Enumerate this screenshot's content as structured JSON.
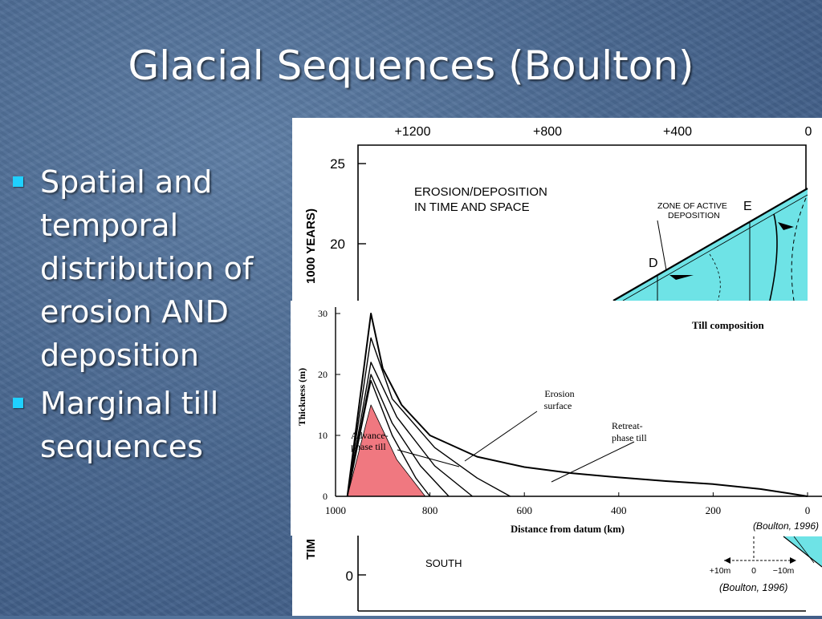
{
  "slide": {
    "title": "Glacial Sequences (Boulton)",
    "bullets": [
      "Spatial and\ntemporal\ndistribution of\nerosion AND\ndeposition",
      "Marginal till\nsequences"
    ]
  },
  "colors": {
    "bullet": "#1fd0ff",
    "deposition_fill": "#6ee3e6",
    "till_fill": "#f07880"
  },
  "back_figure": {
    "top_axis_ticks": [
      "+1200",
      "+800",
      "+400",
      "0"
    ],
    "y_axis_ticks": [
      "25",
      "20",
      "0"
    ],
    "y_axis_label": "1000 YEARS)",
    "y_axis_label_bottom": "TIM",
    "panel_title_line1": "EROSION/DEPOSITION",
    "panel_title_line2": "IN TIME AND SPACE",
    "zone_label_line1": "ZONE OF ACTIVE",
    "zone_label_line2": "DEPOSITION",
    "marker_d": "D",
    "marker_e": "E",
    "south_label": "SOUTH",
    "scale_ticks": [
      "+10m",
      "0",
      "−10m"
    ],
    "credit": "(Boulton, 1996)"
  },
  "chart_data": {
    "type": "line",
    "title": "Till composition",
    "xlabel": "Distance from datum   (km)",
    "ylabel": "Thickness   (m)",
    "x_ticks": [
      "1000",
      "800",
      "600",
      "400",
      "200",
      "0"
    ],
    "y_ticks": [
      "30",
      "20",
      "10",
      "0"
    ],
    "xlim": [
      1000,
      0
    ],
    "ylim": [
      0,
      30
    ],
    "annotations": {
      "erosion_line1": "Erosion",
      "erosion_line2": "surface",
      "advance_line1": "Advance-",
      "advance_line2": "phase till",
      "retreat_line1": "Retreat-",
      "retreat_line2": "phase till"
    },
    "series": [
      {
        "values": [
          [
            975,
            0
          ],
          [
            925,
            15
          ],
          [
            870,
            6
          ],
          [
            810,
            0
          ]
        ]
      },
      {
        "values": [
          [
            975,
            0
          ],
          [
            925,
            19
          ],
          [
            880,
            10
          ],
          [
            830,
            3
          ],
          [
            800,
            0
          ]
        ]
      },
      {
        "values": [
          [
            975,
            0
          ],
          [
            925,
            20
          ],
          [
            880,
            12
          ],
          [
            820,
            5
          ],
          [
            760,
            0
          ]
        ]
      },
      {
        "values": [
          [
            975,
            0
          ],
          [
            925,
            22
          ],
          [
            870,
            13
          ],
          [
            790,
            5
          ],
          [
            710,
            0
          ]
        ]
      },
      {
        "values": [
          [
            975,
            0
          ],
          [
            925,
            26
          ],
          [
            880,
            16
          ],
          [
            790,
            8
          ],
          [
            700,
            3
          ],
          [
            630,
            0
          ]
        ]
      },
      {
        "values": [
          [
            975,
            0
          ],
          [
            925,
            30
          ],
          [
            900,
            21
          ],
          [
            860,
            15
          ],
          [
            800,
            10
          ],
          [
            700,
            6.5
          ],
          [
            600,
            4.8
          ],
          [
            500,
            3.8
          ],
          [
            400,
            3.1
          ],
          [
            300,
            2.5
          ],
          [
            200,
            2
          ],
          [
            100,
            1.2
          ],
          [
            40,
            0.5
          ],
          [
            0,
            0
          ]
        ]
      }
    ],
    "credit": "(Boulton, 1996)"
  }
}
